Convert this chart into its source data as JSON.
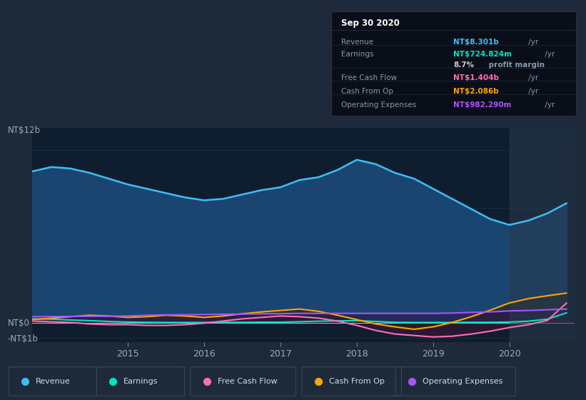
{
  "bg_color": "#1e2a3a",
  "plot_bg_color": "#0f1e2e",
  "title": "Sep 30 2020",
  "y_label_top": "NT$12b",
  "y_label_zero": "NT$0",
  "y_label_bottom": "-NT$1b",
  "x_ticks": [
    "2015",
    "2016",
    "2017",
    "2018",
    "2019",
    "2020"
  ],
  "x_tick_pos": [
    2015,
    2016,
    2017,
    2018,
    2019,
    2020
  ],
  "xlim": [
    2013.75,
    2020.85
  ],
  "ylim": [
    -1.3,
    13.5
  ],
  "highlight_x_start": 2020.0,
  "highlight_color": "#2a3a4e",
  "tooltip": {
    "title": "Sep 30 2020",
    "rows": [
      {
        "label": "Revenue",
        "val_colored": "NT$8.301b",
        "val_suffix": " /yr",
        "val_color": "#3dbff5",
        "bold_suffix": false
      },
      {
        "label": "Earnings",
        "val_colored": "NT$724.824m",
        "val_suffix": " /yr",
        "val_color": "#00e5c0",
        "bold_suffix": false
      },
      {
        "label": "",
        "val_colored": "8.7%",
        "val_suffix": " profit margin",
        "val_color": "#cccccc",
        "bold_suffix": true
      },
      {
        "label": "Free Cash Flow",
        "val_colored": "NT$1.404b",
        "val_suffix": " /yr",
        "val_color": "#ff6eb4",
        "bold_suffix": false
      },
      {
        "label": "Cash From Op",
        "val_colored": "NT$2.086b",
        "val_suffix": " /yr",
        "val_color": "#ffa500",
        "bold_suffix": false
      },
      {
        "label": "Operating Expenses",
        "val_colored": "NT$982.290m",
        "val_suffix": " /yr",
        "val_color": "#a855f7",
        "bold_suffix": false
      }
    ]
  },
  "legend": [
    {
      "label": "Revenue",
      "color": "#3dbff5"
    },
    {
      "label": "Earnings",
      "color": "#00e5c0"
    },
    {
      "label": "Free Cash Flow",
      "color": "#ff6eb4"
    },
    {
      "label": "Cash From Op",
      "color": "#ffa500"
    },
    {
      "label": "Operating Expenses",
      "color": "#a855f7"
    }
  ],
  "revenue_fill_color": "#1a4570",
  "earnings_fill_color": "#0d3545",
  "series": {
    "x": [
      2013.75,
      2014.0,
      2014.25,
      2014.5,
      2014.75,
      2015.0,
      2015.25,
      2015.5,
      2015.75,
      2016.0,
      2016.25,
      2016.5,
      2016.75,
      2017.0,
      2017.25,
      2017.5,
      2017.75,
      2018.0,
      2018.25,
      2018.5,
      2018.75,
      2019.0,
      2019.25,
      2019.5,
      2019.75,
      2020.0,
      2020.25,
      2020.5,
      2020.75
    ],
    "revenue": [
      10.5,
      10.8,
      10.7,
      10.4,
      10.0,
      9.6,
      9.3,
      9.0,
      8.7,
      8.5,
      8.6,
      8.9,
      9.2,
      9.4,
      9.9,
      10.1,
      10.6,
      11.3,
      11.0,
      10.4,
      10.0,
      9.3,
      8.6,
      7.9,
      7.2,
      6.8,
      7.1,
      7.6,
      8.3
    ],
    "earnings": [
      0.3,
      0.28,
      0.22,
      0.18,
      0.12,
      0.08,
      0.06,
      0.05,
      0.05,
      0.05,
      0.06,
      0.06,
      0.07,
      0.07,
      0.1,
      0.14,
      0.16,
      0.18,
      0.12,
      0.06,
      0.05,
      0.05,
      0.05,
      0.06,
      0.06,
      0.08,
      0.14,
      0.28,
      0.72
    ],
    "free_cash_flow": [
      0.15,
      0.1,
      0.05,
      -0.05,
      -0.1,
      -0.1,
      -0.15,
      -0.15,
      -0.1,
      0.0,
      0.15,
      0.3,
      0.4,
      0.5,
      0.45,
      0.35,
      0.15,
      -0.15,
      -0.5,
      -0.75,
      -0.85,
      -0.95,
      -0.9,
      -0.75,
      -0.55,
      -0.3,
      -0.1,
      0.2,
      1.4
    ],
    "cash_from_op": [
      0.25,
      0.35,
      0.45,
      0.55,
      0.5,
      0.4,
      0.45,
      0.55,
      0.5,
      0.4,
      0.5,
      0.65,
      0.78,
      0.88,
      0.98,
      0.82,
      0.55,
      0.25,
      -0.05,
      -0.25,
      -0.42,
      -0.25,
      0.05,
      0.45,
      0.9,
      1.4,
      1.7,
      1.9,
      2.086
    ],
    "op_expenses": [
      0.45,
      0.46,
      0.47,
      0.48,
      0.48,
      0.5,
      0.55,
      0.58,
      0.58,
      0.6,
      0.62,
      0.63,
      0.65,
      0.66,
      0.68,
      0.68,
      0.68,
      0.68,
      0.68,
      0.68,
      0.68,
      0.68,
      0.7,
      0.75,
      0.78,
      0.85,
      0.88,
      0.93,
      0.98
    ]
  }
}
